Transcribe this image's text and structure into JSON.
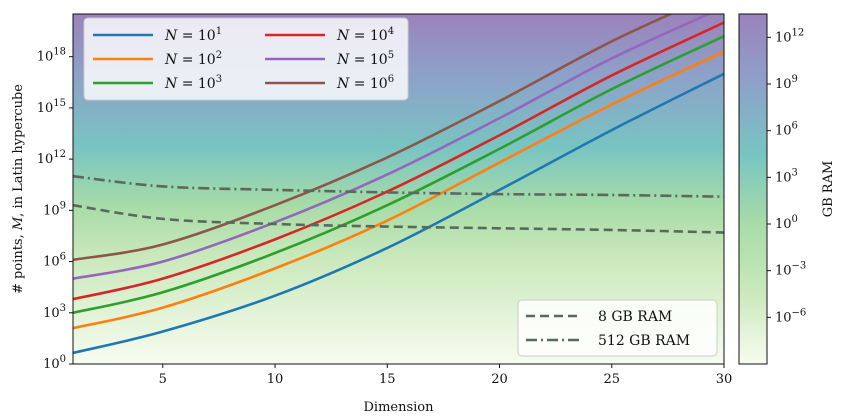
{
  "chart_data": {
    "type": "line",
    "xlabel": "Dimension",
    "ylabel": "# points, M, in Latin hypercube",
    "x_range": [
      1,
      30
    ],
    "yscale": "log",
    "ylim_exponent": [
      0,
      20.5
    ],
    "xticks": [
      5,
      10,
      15,
      20,
      25,
      30
    ],
    "ytick_exponents": [
      0,
      3,
      6,
      9,
      12,
      15,
      18
    ],
    "ytick_labels": [
      "10^0",
      "10^3",
      "10^6",
      "10^9",
      "10^12",
      "10^15",
      "10^18"
    ],
    "legend_position": "top-left",
    "series": [
      {
        "name": "N = 10^1",
        "color": "#1f77b4",
        "dash": "solid",
        "x": [
          1,
          5,
          10,
          15,
          20,
          25,
          30
        ],
        "log10_y": [
          0.65,
          1.9,
          4.0,
          6.8,
          10.2,
          13.7,
          17.0
        ]
      },
      {
        "name": "N = 10^2",
        "color": "#ff7f0e",
        "dash": "solid",
        "x": [
          1,
          5,
          10,
          15,
          20,
          25,
          30
        ],
        "log10_y": [
          2.1,
          3.3,
          5.6,
          8.4,
          11.8,
          15.2,
          18.3
        ]
      },
      {
        "name": "N = 10^3",
        "color": "#2ca02c",
        "dash": "solid",
        "x": [
          1,
          5,
          10,
          15,
          20,
          25,
          30
        ],
        "log10_y": [
          3.0,
          4.2,
          6.5,
          9.3,
          12.6,
          16.1,
          19.2
        ]
      },
      {
        "name": "N = 10^4",
        "color": "#d62728",
        "dash": "solid",
        "x": [
          1,
          5,
          10,
          15,
          20,
          25,
          30
        ],
        "log10_y": [
          3.8,
          5.0,
          7.3,
          10.1,
          13.4,
          16.9,
          20.0
        ]
      },
      {
        "name": "N = 10^5",
        "color": "#9467bd",
        "dash": "solid",
        "x": [
          1,
          5,
          10,
          15,
          20,
          25,
          30
        ],
        "log10_y": [
          5.0,
          6.0,
          8.3,
          11.1,
          14.4,
          17.9,
          20.9
        ]
      },
      {
        "name": "N = 10^6",
        "color": "#8c564b",
        "dash": "solid",
        "x": [
          1,
          5,
          10,
          15,
          20,
          25,
          30
        ],
        "log10_y": [
          6.1,
          7.0,
          9.3,
          12.1,
          15.4,
          18.9,
          21.9
        ]
      },
      {
        "name": "8 GB RAM",
        "color": "#596a5d",
        "dash": "dashed",
        "x": [
          1,
          5,
          10,
          15,
          20,
          25,
          30
        ],
        "log10_y": [
          9.3,
          8.5,
          8.2,
          8.05,
          7.95,
          7.85,
          7.7
        ]
      },
      {
        "name": "512 GB RAM",
        "color": "#596a5d",
        "dash": "dashdot",
        "x": [
          1,
          5,
          10,
          15,
          20,
          25,
          30
        ],
        "log10_y": [
          11.0,
          10.4,
          10.2,
          10.05,
          9.95,
          9.9,
          9.8
        ]
      }
    ],
    "legend_top": {
      "prefix": "N = 10",
      "exponents": [
        "1",
        "2",
        "3",
        "4",
        "5",
        "6"
      ]
    },
    "legend_bottom": [
      "8    GB RAM",
      "512 GB RAM"
    ],
    "colorbar": {
      "label": "GB RAM",
      "scale": "log",
      "tick_exponents": [
        -6,
        -3,
        0,
        3,
        6,
        9,
        12
      ],
      "tick_labels": [
        "10^-6",
        "10^-3",
        "10^0",
        "10^3",
        "10^6",
        "10^9",
        "10^12"
      ],
      "range_exponent": [
        -9,
        13.5
      ],
      "colormap": [
        "#f7fcf0",
        "#cbe9bc",
        "#a8dca7",
        "#78c4c2",
        "#8da2c9",
        "#9b82bb"
      ]
    }
  }
}
